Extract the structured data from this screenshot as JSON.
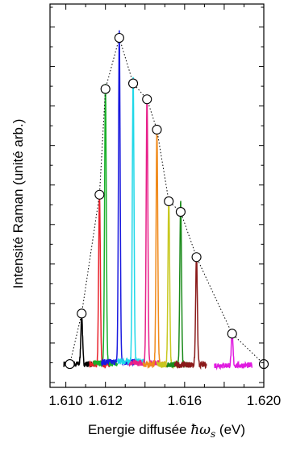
{
  "chart_data": {
    "type": "line",
    "title": "",
    "xlabel_prefix": "Energie diffusée ",
    "xlabel_symbol": "ħω",
    "xlabel_sub": "s",
    "xlabel_suffix": " (eV)",
    "ylabel": "Intensité Raman (unité arb.)",
    "xlim": [
      1.6092,
      1.62
    ],
    "ylim": [
      0,
      1
    ],
    "xticks": [
      1.61,
      1.612,
      1.616,
      1.62
    ],
    "xtick_labels": [
      "1.610",
      "1.612",
      "1.616",
      "1.620"
    ],
    "y_tick_labels": false,
    "grid": false,
    "envelope": {
      "style": "dotted",
      "color": "#000000",
      "points": [
        {
          "x": 1.6102,
          "y": 0.012
        },
        {
          "x": 1.6108,
          "y": 0.165
        },
        {
          "x": 1.6117,
          "y": 0.525
        },
        {
          "x": 1.612,
          "y": 0.845
        },
        {
          "x": 1.6127,
          "y": 1.0
        },
        {
          "x": 1.6134,
          "y": 0.862
        },
        {
          "x": 1.6141,
          "y": 0.814
        },
        {
          "x": 1.6146,
          "y": 0.722
        },
        {
          "x": 1.6152,
          "y": 0.505
        },
        {
          "x": 1.6158,
          "y": 0.473
        },
        {
          "x": 1.6166,
          "y": 0.336
        },
        {
          "x": 1.6184,
          "y": 0.104
        },
        {
          "x": 1.62,
          "y": 0.012
        }
      ]
    },
    "series": [
      {
        "color": "#000000",
        "center": 1.6108,
        "peak": 0.15,
        "baseline": 0.012,
        "range": [
          1.6099,
          1.6113
        ]
      },
      {
        "color": "#e8202a",
        "center": 1.6117,
        "peak": 0.52,
        "baseline": 0.01,
        "range": [
          1.6112,
          1.6122
        ]
      },
      {
        "color": "#19b02a",
        "center": 1.612,
        "peak": 0.84,
        "baseline": 0.015,
        "range": [
          1.6114,
          1.6126
        ]
      },
      {
        "color": "#1a1adf",
        "center": 1.6127,
        "peak": 1.0,
        "baseline": 0.018,
        "range": [
          1.6118,
          1.6136
        ]
      },
      {
        "color": "#20d8e8",
        "center": 1.6134,
        "peak": 0.855,
        "baseline": 0.02,
        "range": [
          1.6126,
          1.614
        ]
      },
      {
        "color": "#e8208a",
        "center": 1.6141,
        "peak": 0.81,
        "baseline": 0.015,
        "range": [
          1.6132,
          1.6147
        ]
      },
      {
        "color": "#f08a1a",
        "center": 1.6146,
        "peak": 0.71,
        "baseline": 0.012,
        "range": [
          1.6139,
          1.6151
        ]
      },
      {
        "color": "#c8c820",
        "center": 1.6152,
        "peak": 0.5,
        "baseline": 0.01,
        "range": [
          1.6146,
          1.6157
        ]
      },
      {
        "color": "#1a8a1a",
        "center": 1.6158,
        "peak": 0.49,
        "baseline": 0.01,
        "range": [
          1.6151,
          1.6163
        ]
      },
      {
        "color": "#8a1a1a",
        "center": 1.6166,
        "peak": 0.33,
        "baseline": 0.01,
        "range": [
          1.6155,
          1.6171
        ]
      },
      {
        "color": "#e01ae0",
        "center": 1.6184,
        "peak": 0.095,
        "baseline": 0.008,
        "range": [
          1.6175,
          1.6194
        ]
      }
    ]
  }
}
